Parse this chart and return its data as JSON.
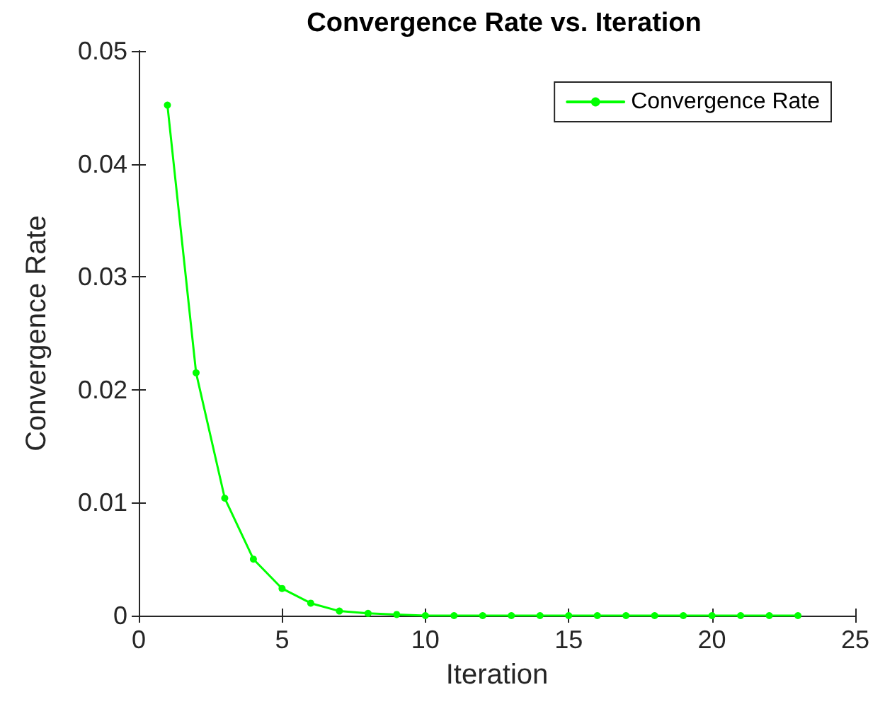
{
  "chart_data": {
    "type": "line",
    "title": "Convergence Rate vs. Iteration",
    "xlabel": "Iteration",
    "ylabel": "Convergence Rate",
    "x": [
      1,
      2,
      3,
      4,
      5,
      6,
      7,
      8,
      9,
      10,
      11,
      12,
      13,
      14,
      15,
      16,
      17,
      18,
      19,
      20,
      21,
      22,
      23
    ],
    "series": [
      {
        "name": "Convergence Rate",
        "color": "#00ff00",
        "values": [
          0.0452,
          0.0215,
          0.0104,
          0.005,
          0.0024,
          0.0011,
          0.0004,
          0.0002,
          0.0001,
          0,
          0,
          0,
          0,
          0,
          0,
          0,
          0,
          0,
          0,
          0,
          0,
          0,
          0
        ]
      }
    ],
    "xlim": [
      0,
      25
    ],
    "xticks": [
      0,
      5,
      10,
      15,
      20,
      25
    ],
    "ylim": [
      0,
      0.05
    ],
    "yticks": [
      0,
      0.01,
      0.02,
      0.03,
      0.04,
      0.05
    ],
    "grid": false,
    "legend": "top right",
    "marker": "circle",
    "line_style": "solid"
  }
}
